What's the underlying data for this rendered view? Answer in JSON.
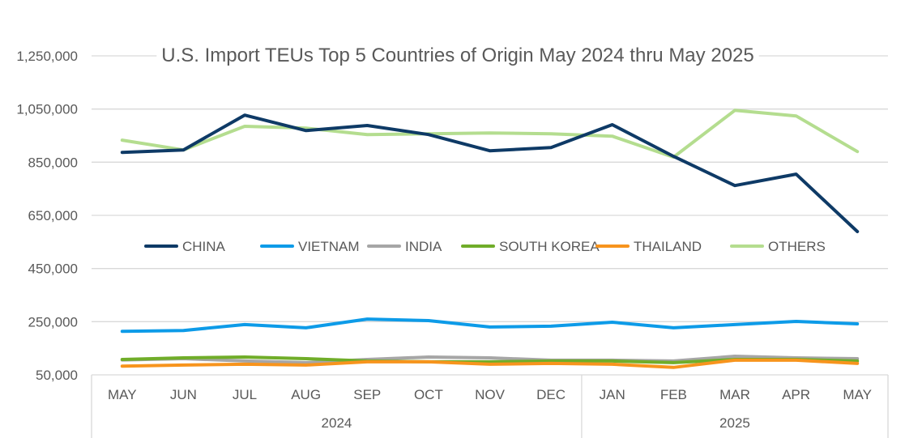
{
  "chart_data": {
    "type": "line",
    "title": "U.S. Import TEUs Top 5 Countries of Origin May 2024 thru May 2025",
    "xlabel": "",
    "ylabel": "",
    "ylim": [
      50000,
      1250000
    ],
    "yticks": [
      50000,
      250000,
      450000,
      650000,
      850000,
      1050000,
      1250000
    ],
    "ytick_labels": [
      "50,000",
      "250,000",
      "450,000",
      "650,000",
      "850,000",
      "1,050,000",
      "1,250,000"
    ],
    "grid": true,
    "legend_position": "inside-center",
    "categories": [
      "MAY",
      "JUN",
      "JUL",
      "AUG",
      "SEP",
      "OCT",
      "NOV",
      "DEC",
      "JAN",
      "FEB",
      "MAR",
      "APR",
      "MAY"
    ],
    "category_groups": [
      {
        "label": "2024",
        "count": 8
      },
      {
        "label": "2025",
        "count": 5
      }
    ],
    "series": [
      {
        "name": "CHINA",
        "color": "#0e3a66",
        "values": [
          887000,
          896000,
          1027000,
          969000,
          988000,
          954000,
          893000,
          905000,
          991000,
          872000,
          762000,
          805000,
          589000
        ]
      },
      {
        "name": "VIETNAM",
        "color": "#0d9be8",
        "values": [
          214000,
          217000,
          239000,
          227000,
          260000,
          254000,
          230000,
          233000,
          248000,
          227000,
          239000,
          251000,
          242000
        ]
      },
      {
        "name": "INDIA",
        "color": "#a6a6a6",
        "values": [
          106000,
          111000,
          102000,
          96000,
          108000,
          117000,
          114000,
          105000,
          105000,
          102000,
          120000,
          114000,
          111000
        ]
      },
      {
        "name": "SOUTH KOREA",
        "color": "#70ad29",
        "values": [
          108000,
          114000,
          117000,
          111000,
          102000,
          99000,
          99000,
          102000,
          102000,
          96000,
          108000,
          108000,
          102000
        ]
      },
      {
        "name": "THAILAND",
        "color": "#f7941d",
        "values": [
          83000,
          87000,
          90000,
          87000,
          99000,
          99000,
          90000,
          93000,
          90000,
          78000,
          105000,
          105000,
          93000
        ]
      },
      {
        "name": "OTHERS",
        "color": "#b4dd8f",
        "values": [
          933000,
          896000,
          985000,
          978000,
          954000,
          957000,
          960000,
          957000,
          948000,
          869000,
          1045000,
          1024000,
          890000
        ]
      }
    ]
  }
}
